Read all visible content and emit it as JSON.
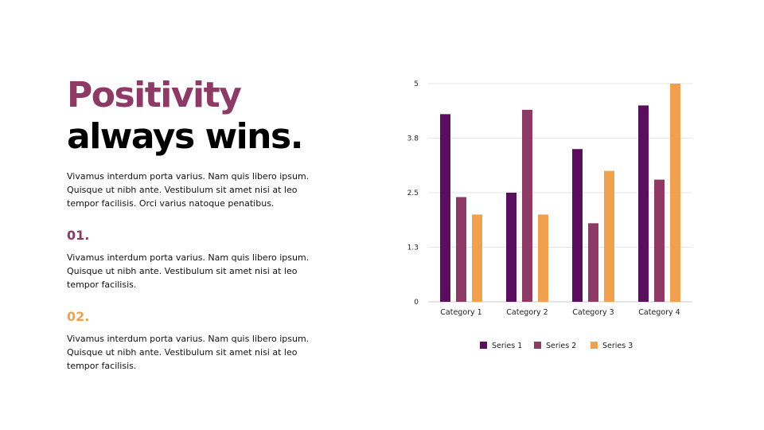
{
  "heading": {
    "line1": "Positivity",
    "line2": "always wins."
  },
  "intro": "Vivamus interdum porta varius. Nam quis libero ipsum. Quisque ut nibh ante. Vestibulum sit amet nisi at leo tempor facilisis. Orci varius natoque penatibus.",
  "points": [
    {
      "number": "01.",
      "text": "Vivamus interdum porta varius. Nam quis libero ipsum. Quisque ut nibh ante. Vestibulum sit amet nisi at leo tempor facilisis."
    },
    {
      "number": "02.",
      "text": "Vivamus interdum porta varius. Nam quis libero ipsum. Quisque ut nibh ante. Vestibulum sit amet nisi at leo tempor facilisis."
    }
  ],
  "colors": {
    "heading_accent": "#8e3a67",
    "point_1": "#8e3a67",
    "point_2": "#f0a150"
  },
  "chart_data": {
    "type": "bar",
    "categories": [
      "Category 1",
      "Category 2",
      "Category 3",
      "Category 4"
    ],
    "series": [
      {
        "name": "Series 1",
        "values": [
          4.3,
          2.5,
          3.5,
          4.5
        ],
        "color": "#5a0f5e"
      },
      {
        "name": "Series 2",
        "values": [
          2.4,
          4.4,
          1.8,
          2.8
        ],
        "color": "#8e3a67"
      },
      {
        "name": "Series 3",
        "values": [
          2.0,
          2.0,
          3.0,
          5.0
        ],
        "color": "#f0a150"
      }
    ],
    "yticks": [
      "0",
      "1.3",
      "2.5",
      "3.8",
      "5"
    ],
    "ylim": [
      0,
      5
    ],
    "grid": true,
    "legend": "bottom"
  }
}
